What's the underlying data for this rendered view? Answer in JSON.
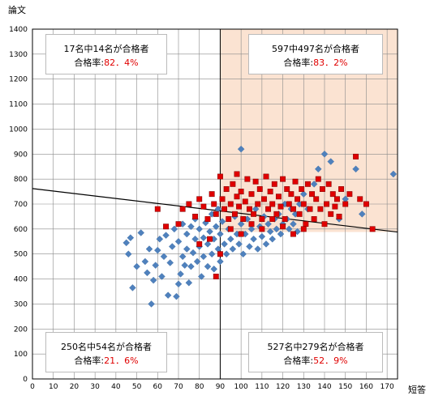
{
  "chart_data": {
    "type": "scatter",
    "xlabel": "短答",
    "ylabel": "論文",
    "xlim": [
      0,
      175
    ],
    "ylim": [
      0,
      1400
    ],
    "xticks": [
      0,
      10,
      20,
      30,
      40,
      50,
      60,
      70,
      80,
      90,
      100,
      110,
      120,
      130,
      140,
      150,
      160,
      170
    ],
    "yticks": [
      0,
      100,
      200,
      300,
      400,
      500,
      600,
      700,
      800,
      900,
      1000,
      1100,
      1200,
      1300,
      1400
    ],
    "grid": true,
    "threshold_x": 90,
    "threshold_line": {
      "x": [
        0,
        175
      ],
      "y": [
        762,
        588
      ]
    },
    "highlight_color": "#fbe3d2",
    "series": [
      {
        "marker": "diamond",
        "color": "#4f81bd",
        "points": [
          [
            45,
            545
          ],
          [
            46,
            500
          ],
          [
            47,
            565
          ],
          [
            48,
            365
          ],
          [
            50,
            450
          ],
          [
            52,
            585
          ],
          [
            54,
            470
          ],
          [
            55,
            425
          ],
          [
            56,
            520
          ],
          [
            57,
            300
          ],
          [
            58,
            395
          ],
          [
            59,
            455
          ],
          [
            60,
            515
          ],
          [
            61,
            560
          ],
          [
            62,
            410
          ],
          [
            63,
            490
          ],
          [
            64,
            575
          ],
          [
            65,
            335
          ],
          [
            66,
            465
          ],
          [
            67,
            530
          ],
          [
            68,
            600
          ],
          [
            69,
            330
          ],
          [
            70,
            380
          ],
          [
            70,
            550
          ],
          [
            71,
            420
          ],
          [
            72,
            490
          ],
          [
            72,
            620
          ],
          [
            73,
            455
          ],
          [
            74,
            520
          ],
          [
            74,
            580
          ],
          [
            75,
            385
          ],
          [
            76,
            450
          ],
          [
            76,
            610
          ],
          [
            77,
            505
          ],
          [
            78,
            560
          ],
          [
            78,
            640
          ],
          [
            79,
            470
          ],
          [
            80,
            530
          ],
          [
            80,
            600
          ],
          [
            81,
            410
          ],
          [
            82,
            490
          ],
          [
            82,
            565
          ],
          [
            83,
            625
          ],
          [
            84,
            450
          ],
          [
            84,
            540
          ],
          [
            85,
            590
          ],
          [
            86,
            500
          ],
          [
            86,
            660
          ],
          [
            87,
            440
          ],
          [
            87,
            560
          ],
          [
            88,
            610
          ],
          [
            89,
            520
          ],
          [
            89,
            680
          ],
          [
            90,
            470
          ],
          [
            90,
            580
          ],
          [
            91,
            630
          ],
          [
            92,
            540
          ],
          [
            93,
            500
          ],
          [
            94,
            600
          ],
          [
            95,
            560
          ],
          [
            96,
            520
          ],
          [
            97,
            650
          ],
          [
            98,
            580
          ],
          [
            99,
            540
          ],
          [
            100,
            620
          ],
          [
            100,
            920
          ],
          [
            101,
            500
          ],
          [
            102,
            580
          ],
          [
            103,
            640
          ],
          [
            104,
            530
          ],
          [
            105,
            600
          ],
          [
            106,
            560
          ],
          [
            107,
            680
          ],
          [
            108,
            520
          ],
          [
            109,
            610
          ],
          [
            110,
            570
          ],
          [
            111,
            650
          ],
          [
            112,
            540
          ],
          [
            113,
            620
          ],
          [
            114,
            590
          ],
          [
            115,
            560
          ],
          [
            116,
            640
          ],
          [
            117,
            600
          ],
          [
            118,
            660
          ],
          [
            119,
            580
          ],
          [
            120,
            620
          ],
          [
            121,
            700
          ],
          [
            122,
            640
          ],
          [
            123,
            600
          ],
          [
            124,
            680
          ],
          [
            125,
            620
          ],
          [
            126,
            660
          ],
          [
            127,
            590
          ],
          [
            128,
            700
          ],
          [
            130,
            740
          ],
          [
            132,
            680
          ],
          [
            135,
            780
          ],
          [
            137,
            840
          ],
          [
            140,
            900
          ],
          [
            143,
            870
          ],
          [
            147,
            640
          ],
          [
            150,
            720
          ],
          [
            155,
            840
          ],
          [
            158,
            660
          ],
          [
            173,
            820
          ]
        ]
      },
      {
        "marker": "square",
        "color": "#e00000",
        "points": [
          [
            60,
            680
          ],
          [
            64,
            610
          ],
          [
            70,
            620
          ],
          [
            72,
            680
          ],
          [
            75,
            700
          ],
          [
            78,
            650
          ],
          [
            80,
            720
          ],
          [
            82,
            690
          ],
          [
            84,
            640
          ],
          [
            86,
            740
          ],
          [
            87,
            700
          ],
          [
            88,
            660
          ],
          [
            90,
            810
          ],
          [
            91,
            720
          ],
          [
            92,
            680
          ],
          [
            93,
            760
          ],
          [
            94,
            640
          ],
          [
            95,
            700
          ],
          [
            96,
            780
          ],
          [
            97,
            660
          ],
          [
            98,
            730
          ],
          [
            99,
            690
          ],
          [
            100,
            750
          ],
          [
            101,
            640
          ],
          [
            102,
            710
          ],
          [
            103,
            800
          ],
          [
            104,
            680
          ],
          [
            105,
            740
          ],
          [
            106,
            660
          ],
          [
            107,
            790
          ],
          [
            108,
            700
          ],
          [
            109,
            760
          ],
          [
            110,
            640
          ],
          [
            111,
            720
          ],
          [
            112,
            810
          ],
          [
            113,
            680
          ],
          [
            114,
            750
          ],
          [
            115,
            700
          ],
          [
            116,
            780
          ],
          [
            117,
            660
          ],
          [
            118,
            730
          ],
          [
            119,
            690
          ],
          [
            120,
            800
          ],
          [
            121,
            640
          ],
          [
            122,
            760
          ],
          [
            123,
            700
          ],
          [
            124,
            740
          ],
          [
            125,
            680
          ],
          [
            126,
            790
          ],
          [
            127,
            720
          ],
          [
            128,
            660
          ],
          [
            129,
            760
          ],
          [
            130,
            700
          ],
          [
            131,
            620
          ],
          [
            132,
            780
          ],
          [
            133,
            680
          ],
          [
            134,
            740
          ],
          [
            135,
            640
          ],
          [
            136,
            720
          ],
          [
            137,
            800
          ],
          [
            138,
            680
          ],
          [
            139,
            760
          ],
          [
            140,
            620
          ],
          [
            141,
            700
          ],
          [
            142,
            780
          ],
          [
            143,
            660
          ],
          [
            144,
            740
          ],
          [
            145,
            690
          ],
          [
            146,
            720
          ],
          [
            147,
            650
          ],
          [
            148,
            760
          ],
          [
            150,
            700
          ],
          [
            152,
            740
          ],
          [
            155,
            890
          ],
          [
            157,
            720
          ],
          [
            160,
            700
          ],
          [
            163,
            600
          ],
          [
            95,
            600
          ],
          [
            100,
            580
          ],
          [
            105,
            620
          ],
          [
            110,
            600
          ],
          [
            115,
            640
          ],
          [
            120,
            610
          ],
          [
            125,
            580
          ],
          [
            130,
            600
          ],
          [
            85,
            560
          ],
          [
            80,
            540
          ],
          [
            90,
            500
          ],
          [
            88,
            410
          ],
          [
            98,
            820
          ]
        ]
      }
    ],
    "annotations": [
      {
        "quadrant": "top-left",
        "line1": "17名中14名が合格者",
        "line2_prefix": "合格率:",
        "rate": "82．4%"
      },
      {
        "quadrant": "top-right",
        "line1": "597中497名が合格者",
        "line2_prefix": "合格率:",
        "rate": "83．2%"
      },
      {
        "quadrant": "bottom-left",
        "line1": "250名中54名が合格者",
        "line2_prefix": "合格率:",
        "rate": "21．6%"
      },
      {
        "quadrant": "bottom-right",
        "line1": "527名中279名が合格者",
        "line2_prefix": "合格率:",
        "rate": "52．9%"
      }
    ]
  }
}
